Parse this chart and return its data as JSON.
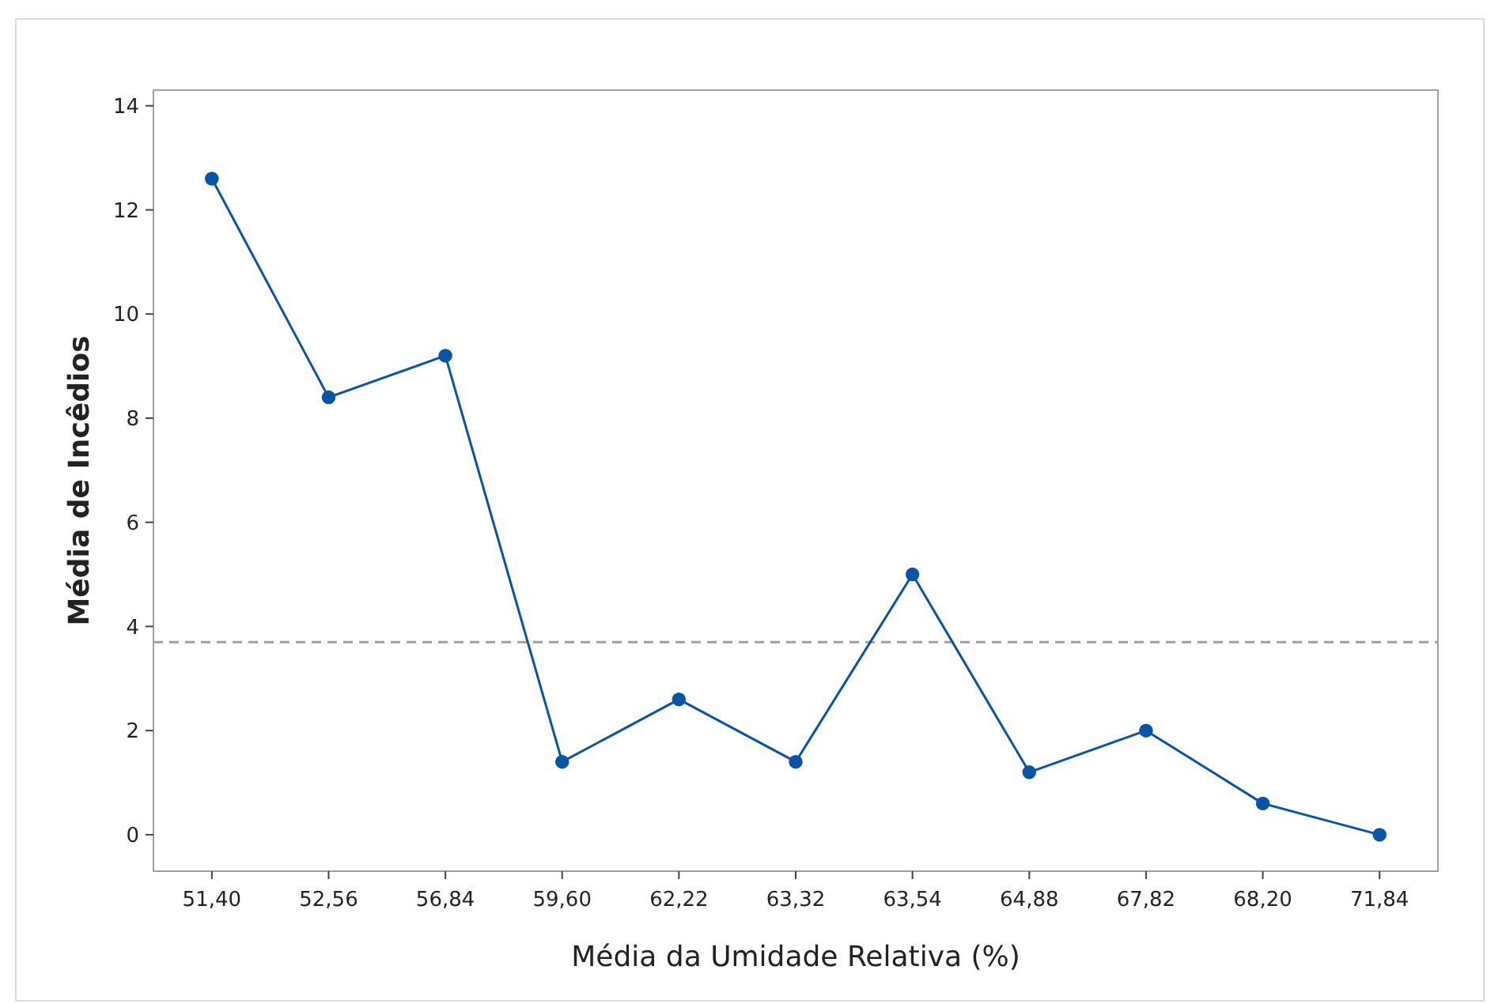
{
  "chart_data": {
    "type": "line",
    "xlabel": "Média da Umidade Relativa (%)",
    "ylabel": "Média de Incêdios",
    "categories": [
      "51,40",
      "52,56",
      "56,84",
      "59,60",
      "62,22",
      "63,32",
      "63,54",
      "64,88",
      "67,82",
      "68,20",
      "71,84"
    ],
    "series": [
      {
        "color": "#0a54a5",
        "values": [
          12.6,
          8.4,
          9.2,
          1.4,
          2.6,
          1.4,
          5.0,
          1.2,
          2.0,
          0.6,
          0.0
        ]
      }
    ],
    "ylim": [
      -0.7,
      14.3
    ],
    "yticks": [
      0,
      2,
      4,
      6,
      8,
      10,
      12,
      14
    ],
    "ref_lines": [
      {
        "axis": "y",
        "value": 3.7,
        "color": "#a0a0a0",
        "line_style": "dashed"
      }
    ],
    "marker": "circle",
    "line_style": "solid",
    "grid": false
  }
}
